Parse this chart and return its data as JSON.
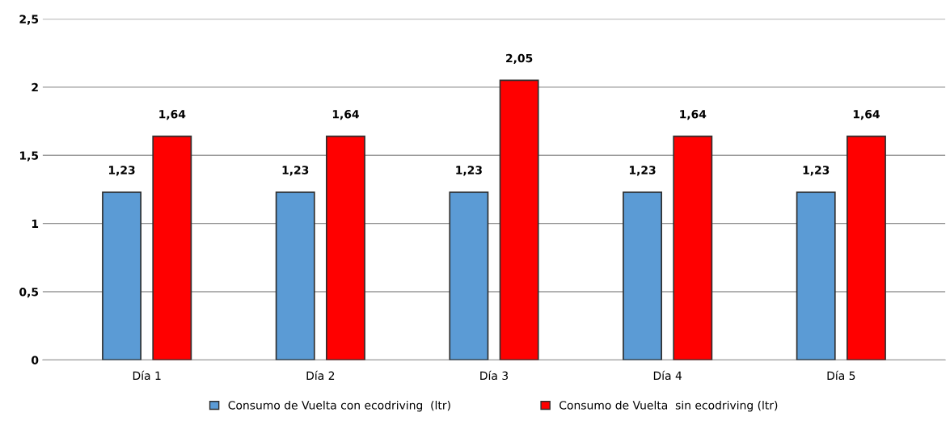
{
  "chart_data": {
    "type": "bar",
    "categories": [
      "Día 1",
      "Día 2",
      "Día 3",
      "Día 4",
      "Día 5"
    ],
    "series": [
      {
        "name": "Consumo de Vuelta con ecodriving  (ltr)",
        "color": "#5b9bd5",
        "values": [
          1.23,
          1.23,
          1.23,
          1.23,
          1.23
        ],
        "value_labels": [
          "1,23",
          "1,23",
          "1,23",
          "1,23",
          "1,23"
        ]
      },
      {
        "name": "Consumo de Vuelta  sin ecodriving (ltr)",
        "color": "#ff0000",
        "values": [
          1.64,
          1.64,
          2.05,
          1.64,
          1.64
        ],
        "value_labels": [
          "1,64",
          "1,64",
          "2,05",
          "1,64",
          "1,64"
        ]
      }
    ],
    "ylim": [
      0,
      2.5
    ],
    "yticks": [
      0,
      {
        "value": 0.5,
        "label": "0,5"
      },
      1,
      {
        "value": 1.5,
        "label": "1,5"
      },
      2,
      {
        "value": 2.5,
        "label": "2,5"
      }
    ],
    "grid": "y",
    "legend": "bottom"
  }
}
